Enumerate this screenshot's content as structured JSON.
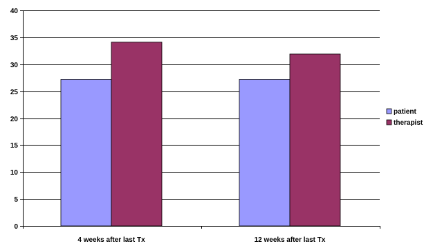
{
  "chart_data": {
    "type": "bar",
    "title": "",
    "xlabel": "",
    "ylabel": "",
    "categories": [
      "4 weeks after last Tx",
      "12 weeks after last Tx"
    ],
    "series": [
      {
        "name": "patient",
        "values": [
          27.2,
          27.2
        ],
        "color": "#9999ff"
      },
      {
        "name": "therapist",
        "values": [
          34.1,
          31.9
        ],
        "color": "#993366"
      }
    ],
    "ylim": [
      0,
      40
    ],
    "yticks": [
      0,
      5,
      10,
      15,
      20,
      25,
      30,
      35,
      40
    ],
    "grid": true,
    "legend": "right"
  }
}
